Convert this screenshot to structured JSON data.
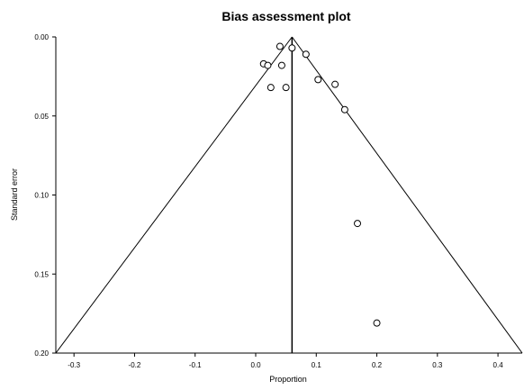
{
  "chart_data": {
    "type": "scatter",
    "title": "Bias assessment plot",
    "xlabel": "Proportion",
    "ylabel": "Standard error",
    "xlim": [
      -0.33,
      0.44
    ],
    "ylim": [
      0.0,
      0.2
    ],
    "y_inverted": true,
    "x_ticks": [
      "-0.3",
      "-0.2",
      "-0.1",
      "0.0",
      "0.1",
      "0.2",
      "0.3",
      "0.4"
    ],
    "x_tick_values": [
      -0.3,
      -0.2,
      -0.1,
      0.0,
      0.1,
      0.2,
      0.3,
      0.4
    ],
    "y_ticks": [
      "0.00",
      "0.05",
      "0.10",
      "0.15",
      "0.20"
    ],
    "y_tick_values": [
      0.0,
      0.05,
      0.1,
      0.15,
      0.2
    ],
    "pooled_estimate": 0.06,
    "funnel": {
      "apex": [
        0.06,
        0.0
      ],
      "left_base": [
        -0.33,
        0.2
      ],
      "right_base": [
        0.44,
        0.2
      ]
    },
    "grid": false,
    "points": [
      {
        "x": 0.04,
        "y": 0.006
      },
      {
        "x": 0.06,
        "y": 0.007
      },
      {
        "x": 0.083,
        "y": 0.011
      },
      {
        "x": 0.013,
        "y": 0.017
      },
      {
        "x": 0.02,
        "y": 0.018
      },
      {
        "x": 0.043,
        "y": 0.018
      },
      {
        "x": 0.103,
        "y": 0.027
      },
      {
        "x": 0.131,
        "y": 0.03
      },
      {
        "x": 0.025,
        "y": 0.032
      },
      {
        "x": 0.05,
        "y": 0.032
      },
      {
        "x": 0.147,
        "y": 0.046
      },
      {
        "x": 0.168,
        "y": 0.118
      },
      {
        "x": 0.2,
        "y": 0.181
      }
    ]
  }
}
